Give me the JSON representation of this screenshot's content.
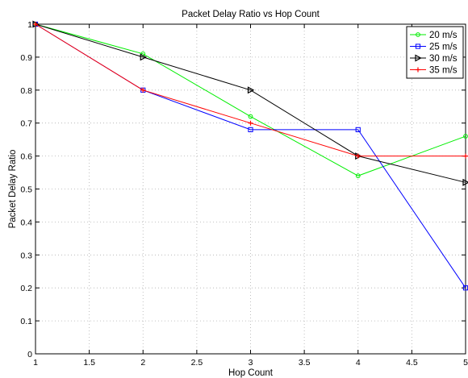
{
  "chart_data": {
    "type": "line",
    "title": "Packet Delay Ratio vs Hop Count",
    "xlabel": "Hop Count",
    "ylabel": "Packet Delay Ratio",
    "xlim": [
      1,
      5
    ],
    "ylim": [
      0,
      1
    ],
    "xticks": [
      1,
      1.5,
      2,
      2.5,
      3,
      3.5,
      4,
      4.5,
      5
    ],
    "xtick_labels": [
      "1",
      "1.5",
      "2",
      "2.5",
      "3",
      "3.5",
      "4",
      "4.5",
      "5"
    ],
    "yticks": [
      0,
      0.1,
      0.2,
      0.3,
      0.4,
      0.5,
      0.6,
      0.7,
      0.8,
      0.9,
      1
    ],
    "ytick_labels": [
      "0",
      "0.1",
      "0.2",
      "0.3",
      "0.4",
      "0.5",
      "0.6",
      "0.7",
      "0.8",
      "0.9",
      "1"
    ],
    "grid": true,
    "legend_position": "top-right",
    "x": [
      1,
      2,
      3,
      4,
      5
    ],
    "series": [
      {
        "name": "20 m/s",
        "color": "#00ee00",
        "marker": "circle",
        "values": [
          1.0,
          0.91,
          0.72,
          0.54,
          0.66
        ]
      },
      {
        "name": "25 m/s",
        "color": "#0000ff",
        "marker": "square",
        "values": [
          1.0,
          0.8,
          0.68,
          0.68,
          0.2
        ]
      },
      {
        "name": "30 m/s",
        "color": "#000000",
        "marker": "triangle-right",
        "values": [
          1.0,
          0.9,
          0.8,
          0.6,
          0.52
        ]
      },
      {
        "name": "35 m/s",
        "color": "#ff0000",
        "marker": "plus",
        "values": [
          1.0,
          0.8,
          0.7,
          0.6,
          0.6
        ]
      }
    ]
  }
}
